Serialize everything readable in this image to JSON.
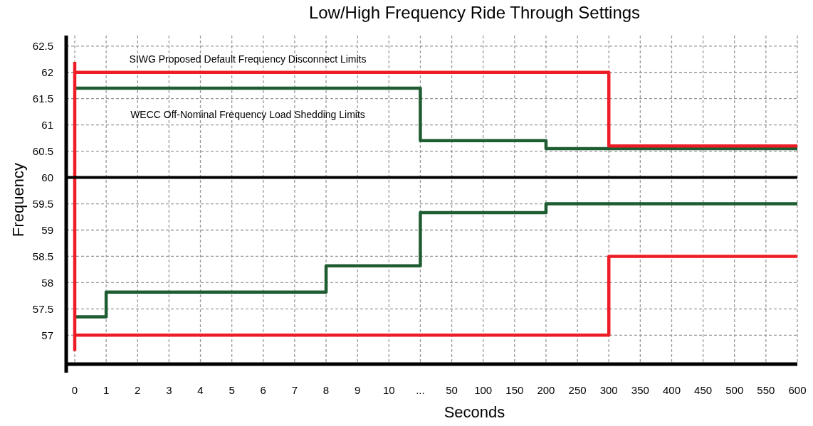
{
  "chart_data": {
    "type": "step",
    "title": "Low/High Frequency Ride Through Settings",
    "xlabel": "Seconds",
    "ylabel": "Frequency",
    "categories": [
      "0",
      "1",
      "2",
      "3",
      "4",
      "5",
      "6",
      "7",
      "8",
      "9",
      "10",
      "...",
      "50",
      "100",
      "150",
      "200",
      "250",
      "300",
      "350",
      "400",
      "450",
      "500",
      "550",
      "600"
    ],
    "ylim": [
      56.45,
      62.7
    ],
    "yticks": [
      57,
      57.5,
      58,
      58.5,
      59,
      59.5,
      60,
      60.5,
      61,
      61.5,
      62,
      62.5
    ],
    "grid": true,
    "line_style": "solid",
    "series": [
      {
        "color": "#1e5c32",
        "values": [
          61.7,
          61.7,
          61.7,
          61.7,
          61.7,
          61.7,
          61.7,
          61.7,
          61.7,
          61.7,
          61.7,
          60.7,
          60.7,
          60.7,
          60.7,
          60.55,
          60.55,
          60.55,
          60.55,
          60.55,
          60.55,
          60.55,
          60.55,
          60.55
        ]
      },
      {
        "color": "#1e5c32",
        "values": [
          57.35,
          57.82,
          57.82,
          57.82,
          57.82,
          57.82,
          57.82,
          57.82,
          58.32,
          58.32,
          58.32,
          59.33,
          59.33,
          59.33,
          59.33,
          59.5,
          59.5,
          59.5,
          59.5,
          59.5,
          59.5,
          59.5,
          59.5,
          59.5
        ]
      },
      {
        "color": "#ee1c25",
        "values": [
          62,
          62,
          62,
          62,
          62,
          62,
          62,
          62,
          62,
          62,
          62,
          62,
          62,
          62,
          62,
          62,
          62,
          60.6,
          60.6,
          60.6,
          60.6,
          60.6,
          60.6,
          60.6
        ]
      },
      {
        "color": "#ee1c25",
        "values": [
          57,
          57,
          57,
          57,
          57,
          57,
          57,
          57,
          57,
          57,
          57,
          57,
          57,
          57,
          57,
          57,
          57,
          58.5,
          58.5,
          58.5,
          58.5,
          58.5,
          58.5,
          58.5
        ]
      },
      {
        "color": "#ee1c25",
        "x": [
          "0",
          "0"
        ],
        "values": [
          56.7,
          62.2
        ]
      }
    ],
    "ref_lines": [
      {
        "axis": "y",
        "value": 60,
        "color": "#000000"
      }
    ],
    "annotations": [
      "SIWG Proposed Default Frequency Disconnect Limits",
      "WECC Off-Nominal Frequency Load Shedding Limits"
    ]
  }
}
